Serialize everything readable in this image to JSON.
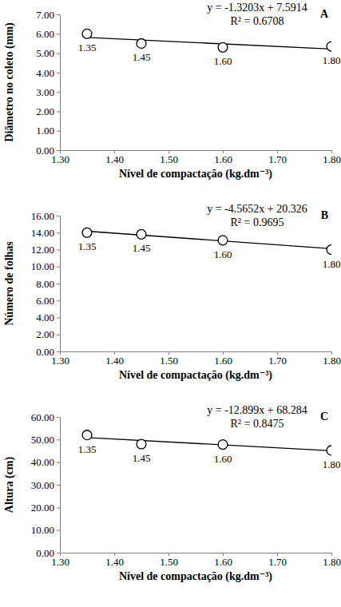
{
  "chart_data": [
    {
      "type": "scatter",
      "panel_label": "A",
      "x_label": "Nível de compactação (kg.dm⁻³)",
      "y_label": "Diâmetro no coleto (mm)",
      "x": [
        1.35,
        1.45,
        1.6,
        1.8
      ],
      "values": [
        6.0,
        5.5,
        5.3,
        5.35
      ],
      "point_labels": [
        "1.35",
        "1.45",
        "1.60",
        "1.80"
      ],
      "marker": "circle",
      "color": "#000000",
      "grid": false,
      "trendline": {
        "slope": -1.3203,
        "intercept": 7.5914,
        "label": "y = -1.3203x + 7.5914",
        "r2_label": "R² = 0.6708"
      },
      "xlim": [
        1.3,
        1.8
      ],
      "xticks": [
        {
          "value": 1.3,
          "label": "1.30"
        },
        {
          "value": 1.4,
          "label": "1.40"
        },
        {
          "value": 1.5,
          "label": "1.50"
        },
        {
          "value": 1.6,
          "label": "1.60"
        },
        {
          "value": 1.7,
          "label": "1.70"
        },
        {
          "value": 1.8,
          "label": "1.80"
        }
      ],
      "ylim": [
        0,
        7
      ],
      "yticks": [
        {
          "value": 0,
          "label": "0.00"
        },
        {
          "value": 1,
          "label": "1.00"
        },
        {
          "value": 2,
          "label": "2.00"
        },
        {
          "value": 3,
          "label": "3.00"
        },
        {
          "value": 4,
          "label": "4.00"
        },
        {
          "value": 5,
          "label": "5.00"
        },
        {
          "value": 6,
          "label": "6.00"
        },
        {
          "value": 7,
          "label": "7.00"
        }
      ]
    },
    {
      "type": "scatter",
      "panel_label": "B",
      "x_label": "Nível de compactação (kg.dm⁻³)",
      "y_label": "Número de folhas",
      "x": [
        1.35,
        1.45,
        1.6,
        1.8
      ],
      "values": [
        14.0,
        13.8,
        13.1,
        12.0
      ],
      "point_labels": [
        "1.35",
        "1.45",
        "1.60",
        "1.80"
      ],
      "marker": "circle",
      "color": "#000000",
      "grid": false,
      "trendline": {
        "slope": -4.5652,
        "intercept": 20.326,
        "label": "y = -4.5652x + 20.326",
        "r2_label": "R² = 0.9695"
      },
      "xlim": [
        1.3,
        1.8
      ],
      "xticks": [
        {
          "value": 1.3,
          "label": "1.30"
        },
        {
          "value": 1.4,
          "label": "1.40"
        },
        {
          "value": 1.5,
          "label": "1.50"
        },
        {
          "value": 1.6,
          "label": "1.60"
        },
        {
          "value": 1.7,
          "label": "1.70"
        },
        {
          "value": 1.8,
          "label": "1.80"
        }
      ],
      "ylim": [
        0,
        16
      ],
      "yticks": [
        {
          "value": 0,
          "label": "0.00"
        },
        {
          "value": 2,
          "label": "2.00"
        },
        {
          "value": 4,
          "label": "4.00"
        },
        {
          "value": 6,
          "label": "6.00"
        },
        {
          "value": 8,
          "label": "8.00"
        },
        {
          "value": 10,
          "label": "10.00"
        },
        {
          "value": 12,
          "label": "12.00"
        },
        {
          "value": 14,
          "label": "14.00"
        },
        {
          "value": 16,
          "label": "16.00"
        }
      ]
    },
    {
      "type": "scatter",
      "panel_label": "C",
      "x_label": "Nível de compactação (kg.dm⁻³)",
      "y_label": "Altura (cm)",
      "x": [
        1.35,
        1.45,
        1.6,
        1.8
      ],
      "values": [
        52.0,
        48.0,
        47.8,
        45.2
      ],
      "point_labels": [
        "1.35",
        "1.45",
        "1.60",
        "1.80"
      ],
      "marker": "circle",
      "color": "#000000",
      "grid": false,
      "trendline": {
        "slope": -12.899,
        "intercept": 68.284,
        "label": "y = -12.899x + 68.284",
        "r2_label": "R² = 0.8475"
      },
      "xlim": [
        1.3,
        1.8
      ],
      "xticks": [
        {
          "value": 1.3,
          "label": "1.30"
        },
        {
          "value": 1.4,
          "label": "1.40"
        },
        {
          "value": 1.5,
          "label": "1.50"
        },
        {
          "value": 1.6,
          "label": "1.60"
        },
        {
          "value": 1.7,
          "label": "1.70"
        },
        {
          "value": 1.8,
          "label": "1.80"
        }
      ],
      "ylim": [
        0,
        60
      ],
      "yticks": [
        {
          "value": 0,
          "label": "0.00"
        },
        {
          "value": 10,
          "label": "10.00"
        },
        {
          "value": 20,
          "label": "20.00"
        },
        {
          "value": 30,
          "label": "30.00"
        },
        {
          "value": 40,
          "label": "40.00"
        },
        {
          "value": 50,
          "label": "50.00"
        },
        {
          "value": 60,
          "label": "60.00"
        }
      ]
    }
  ]
}
